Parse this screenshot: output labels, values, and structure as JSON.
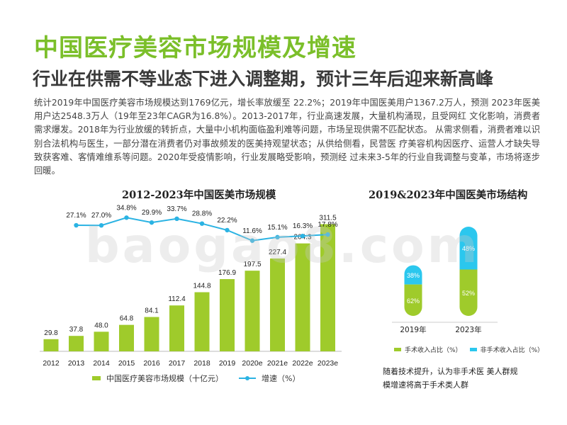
{
  "header": {
    "title": "中国医疗美容市场规模及增速",
    "subtitle": "行业在供需不等业态下进入调整期，预计三年后迎来新高峰",
    "description": "统计2019年中国医疗美容市场规模达到1769亿元，增长率放缓至 22.2%；2019年中国医美用户1367.2万人，预测 2023年医美用户达2548.3万人（19年至23年CAGR为16.8%）。2013-2017年，行业高速发展，大量机构涌现，且受网红 文化影响，消费者需求爆发。2018年为行业放缓的转折点，大量中小机构面临盈利难等问题，市场呈现供需不匹配状态。 从需求侧看，消费者难以识别合法机构与医生，一部分潜在消费者仍对事故频发的医美持观望状态；从供给侧看，民营医 疗美容机构因医疗、运营人才缺失导致获客难、客情难维系等问题。2020年受疫情影响，行业发展略受影响，预测经 过未来3-5年的行业自我调整与变革，市场将逐步回暖。"
  },
  "watermark": "baogao8.com",
  "chart_data": [
    {
      "type": "bar",
      "title": "2012-2023年中国医美市场规模",
      "categories": [
        "2012",
        "2013",
        "2014",
        "2015",
        "2016",
        "2017",
        "2018",
        "2019",
        "2020e",
        "2021e",
        "2022e",
        "2023e"
      ],
      "series": [
        {
          "name": "中国医疗美容市场规模（十亿元）",
          "type": "bar",
          "color": "#9fcb2b",
          "values": [
            29.8,
            37.8,
            48.0,
            64.8,
            84.1,
            112.4,
            144.8,
            176.9,
            197.5,
            227.4,
            264.3,
            311.5
          ],
          "labels": [
            "29.8",
            "37.8",
            "48.0",
            "64.8",
            "84.1",
            "112.4",
            "144.8",
            "176.9",
            "197.5",
            "227.4",
            "264.3",
            "311.5"
          ]
        },
        {
          "name": "增速（%）",
          "type": "line",
          "color": "#2bb3e3",
          "values": [
            null,
            27.1,
            27.0,
            34.8,
            29.9,
            33.7,
            28.8,
            22.2,
            11.6,
            15.1,
            16.3,
            17.8
          ],
          "labels": [
            "",
            "27.1%",
            "27.0%",
            "34.8%",
            "29.9%",
            "33.7%",
            "28.8%",
            "22.2%",
            "11.6%",
            "15.1%",
            "16.3%",
            "17.8%"
          ]
        }
      ],
      "bar_ylim": [
        0,
        340
      ],
      "line_ylim": [
        -100,
        40
      ],
      "legend_position": "bottom"
    },
    {
      "type": "bar",
      "stacked": true,
      "title": "2019&2023年中国医美市场结构",
      "categories": [
        "2019年",
        "2023年"
      ],
      "series": [
        {
          "name": "手术收入占比（%）",
          "color": "#9fcb2b",
          "values": [
            62,
            52
          ],
          "labels": [
            "62%",
            "52%"
          ]
        },
        {
          "name": "非手术收入占比（%）",
          "color": "#2bc7ee",
          "values": [
            38,
            48
          ],
          "labels": [
            "38%",
            "48%"
          ]
        }
      ],
      "totals_relative": [
        1769,
        3115
      ],
      "legend_position": "bottom"
    }
  ],
  "legend_left": {
    "bar_label": "中国医疗美容市场规模（十亿元）",
    "line_label": "增速（%）"
  },
  "legend_right": {
    "surgical_label": "手术收入占比（%）",
    "nonsurgical_label": "非手术收入占比（%）"
  },
  "note": "随着技术提升，认为非手术医 美人群规模增速将高于手术类人群"
}
